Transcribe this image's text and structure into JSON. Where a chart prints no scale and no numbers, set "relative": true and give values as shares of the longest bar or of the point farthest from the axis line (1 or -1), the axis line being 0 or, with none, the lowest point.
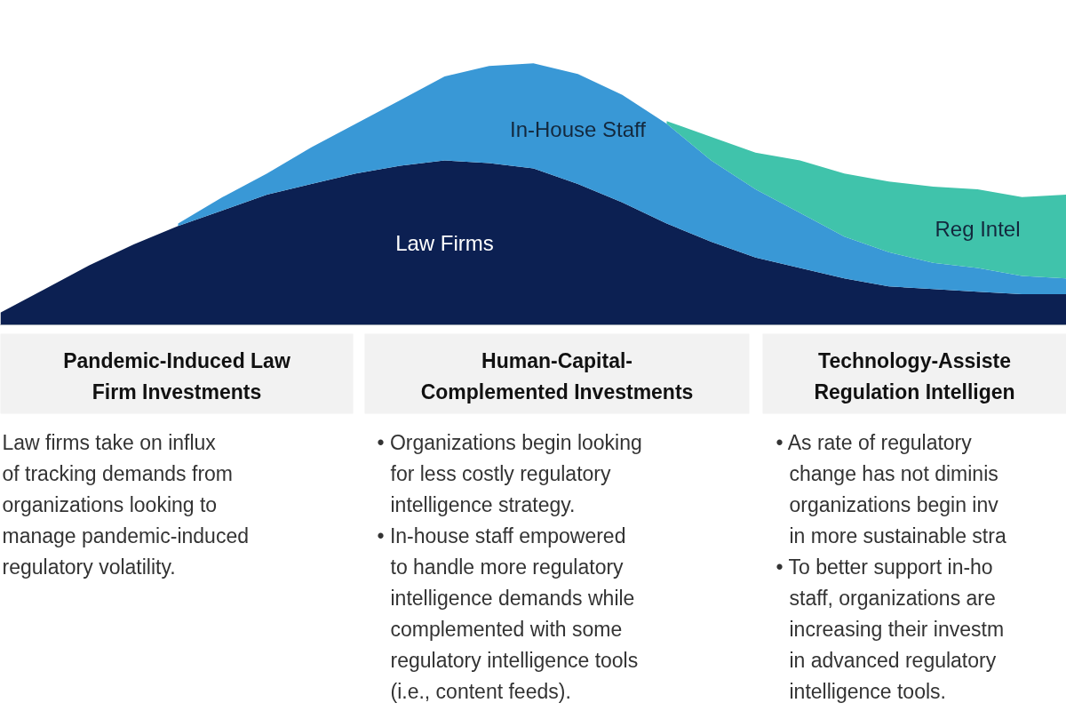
{
  "chart_data": {
    "type": "area",
    "stacked": true,
    "relative": true,
    "categories": [
      null,
      null,
      null,
      null,
      null,
      null,
      null,
      null,
      null,
      null,
      null,
      null,
      null,
      null,
      null,
      null,
      null,
      null,
      null,
      null,
      null,
      null,
      null,
      null,
      null
    ],
    "series": [
      {
        "name": "Law Firms",
        "color": "#0c2052",
        "values": [
          0.05,
          0.14,
          0.23,
          0.31,
          0.38,
          0.44,
          0.5,
          0.54,
          0.58,
          0.61,
          0.63,
          0.62,
          0.6,
          0.54,
          0.47,
          0.39,
          0.32,
          0.26,
          0.22,
          0.18,
          0.15,
          0.14,
          0.13,
          0.12,
          0.12
        ]
      },
      {
        "name": "In-House Staff",
        "color": "#3998d6",
        "values": [
          null,
          null,
          null,
          null,
          0.01,
          0.05,
          0.08,
          0.14,
          0.19,
          0.25,
          0.32,
          0.37,
          0.4,
          0.42,
          0.41,
          0.38,
          0.31,
          0.26,
          0.21,
          0.16,
          0.13,
          0.1,
          0.09,
          0.07,
          0.06
        ]
      },
      {
        "name": "Reg Intel",
        "color": "#40c3ab",
        "values": [
          null,
          null,
          null,
          null,
          null,
          null,
          null,
          null,
          null,
          null,
          null,
          null,
          null,
          null,
          null,
          0.01,
          0.09,
          0.14,
          0.2,
          0.24,
          0.27,
          0.29,
          0.3,
          0.3,
          0.32
        ]
      }
    ],
    "annotations": [
      "Pandemic-Induced Law\nFirm Investments",
      "Law firms take on influx\nof tracking demands from\norganizations looking to\nmanage pandemic-induced\nregulatory volatility.",
      "Human-Capital-\nComplemented Investments",
      "• Organizations begin looking\nfor less costly regulatory\nintelligence strategy.",
      "• In-house staff empowered\nto handle more regulatory\nintelligence demands while\ncomplemented with some\nregulatory intelligence tools\n(i.e., content feeds).",
      "Technology-Assiste\nRegulation Intelligen",
      "• As rate of regulatory\nchange has not diminis\norganizations begin inv\nin more sustainable stra",
      "• To better support in-ho\nstaff, organizations are\nincreasing their investm\nin advanced regulatory\nintelligence tools."
    ]
  }
}
